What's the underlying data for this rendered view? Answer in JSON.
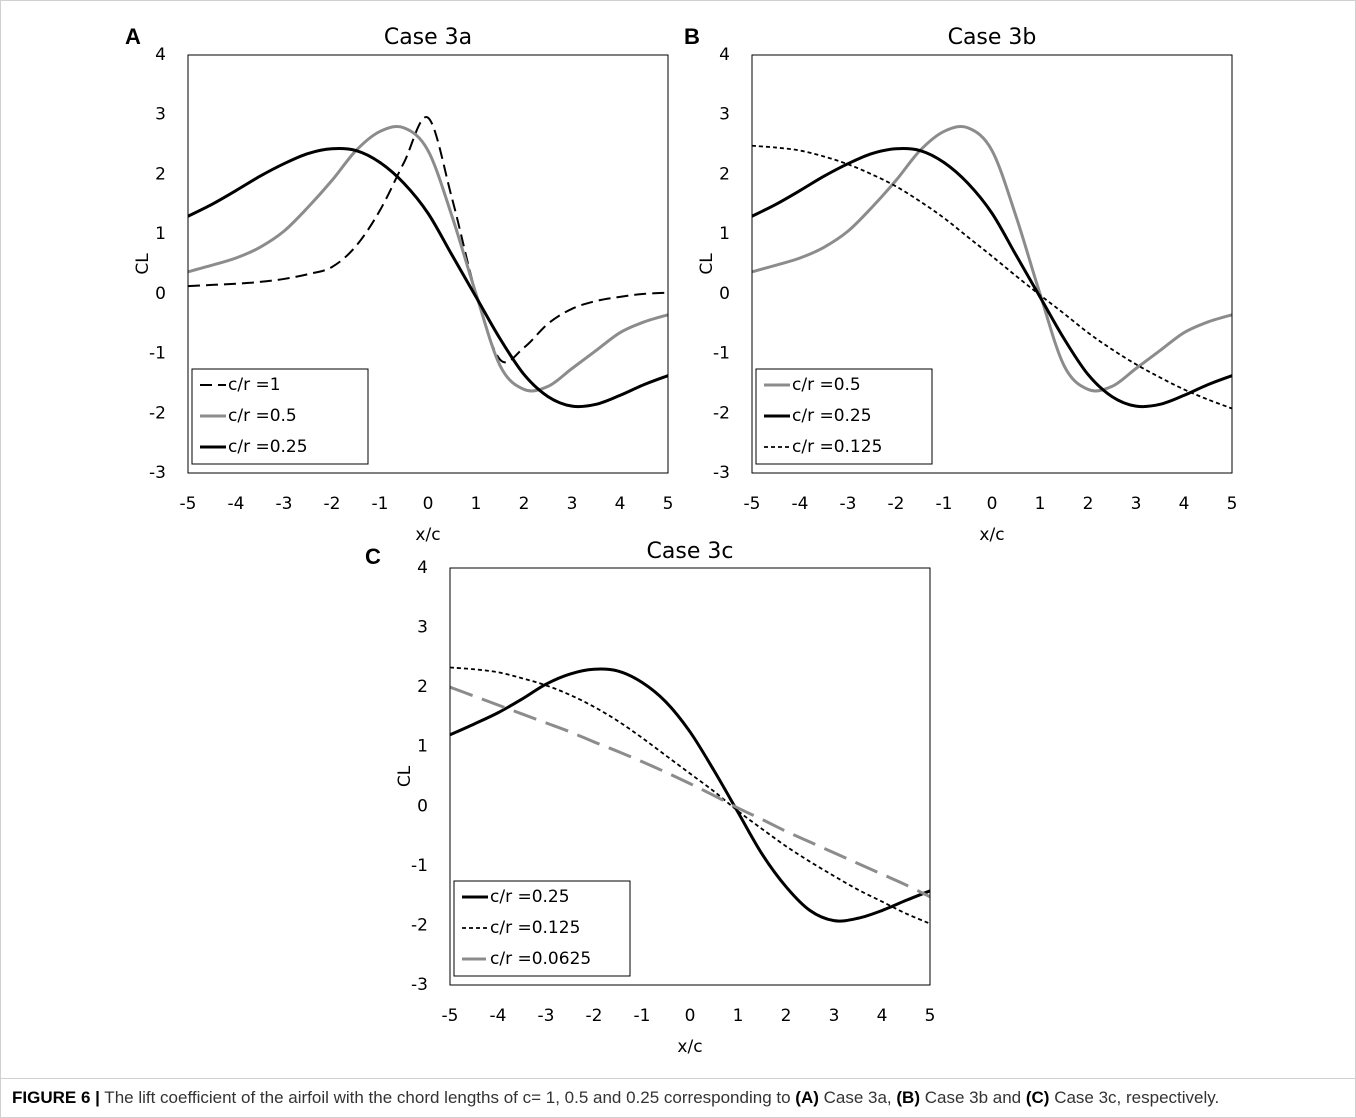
{
  "chart_data": [
    {
      "type": "line",
      "panel": "A",
      "title": "Case 3a",
      "x_label": "x/c",
      "y_label": "CL",
      "xlim": [
        -5,
        5
      ],
      "xticks": [
        -5,
        -4,
        -3,
        -2,
        -1,
        0,
        1,
        2,
        3,
        4,
        5
      ],
      "ylim": [
        -3,
        4
      ],
      "yticks": [
        -3,
        -2,
        -1,
        0,
        1,
        2,
        3,
        4
      ],
      "legend": "lower left",
      "x": [
        -5,
        -4.5,
        -4,
        -3.5,
        -3,
        -2.5,
        -2,
        -1.5,
        -1,
        -0.5,
        0,
        0.5,
        1,
        1.5,
        2,
        2.5,
        3,
        3.5,
        4,
        4.5,
        5
      ],
      "series": [
        {
          "name": "c/r =1",
          "color": "#000000",
          "dash": "dashed",
          "values": [
            0.13,
            0.15,
            0.17,
            0.2,
            0.25,
            0.33,
            0.45,
            0.8,
            1.4,
            2.2,
            2.95,
            1.6,
            0,
            -1.1,
            -0.9,
            -0.5,
            -0.25,
            -0.12,
            -0.05,
            0,
            0.02
          ]
        },
        {
          "name": "c/r =0.5",
          "color": "#8c8c8c",
          "dash": "solid",
          "values": [
            0.37,
            0.48,
            0.6,
            0.78,
            1.05,
            1.45,
            1.9,
            2.4,
            2.72,
            2.78,
            2.4,
            1.3,
            0,
            -1.2,
            -1.6,
            -1.55,
            -1.25,
            -0.95,
            -0.65,
            -0.47,
            -0.35
          ]
        },
        {
          "name": "c/r =0.25",
          "color": "#000000",
          "dash": "solid",
          "values": [
            1.3,
            1.5,
            1.73,
            1.97,
            2.18,
            2.35,
            2.43,
            2.4,
            2.2,
            1.85,
            1.35,
            0.65,
            -0.05,
            -0.75,
            -1.35,
            -1.72,
            -1.88,
            -1.85,
            -1.7,
            -1.52,
            -1.37
          ]
        }
      ]
    },
    {
      "type": "line",
      "panel": "B",
      "title": "Case 3b",
      "x_label": "x/c",
      "y_label": "CL",
      "xlim": [
        -5,
        5
      ],
      "xticks": [
        -5,
        -4,
        -3,
        -2,
        -1,
        0,
        1,
        2,
        3,
        4,
        5
      ],
      "ylim": [
        -3,
        4
      ],
      "yticks": [
        -3,
        -2,
        -1,
        0,
        1,
        2,
        3,
        4
      ],
      "legend": "lower left",
      "x": [
        -5,
        -4.5,
        -4,
        -3.5,
        -3,
        -2.5,
        -2,
        -1.5,
        -1,
        -0.5,
        0,
        0.5,
        1,
        1.5,
        2,
        2.5,
        3,
        3.5,
        4,
        4.5,
        5
      ],
      "series": [
        {
          "name": "c/r =0.5",
          "color": "#8c8c8c",
          "dash": "solid",
          "values": [
            0.37,
            0.48,
            0.6,
            0.78,
            1.05,
            1.45,
            1.9,
            2.4,
            2.72,
            2.78,
            2.4,
            1.3,
            0,
            -1.2,
            -1.6,
            -1.55,
            -1.25,
            -0.95,
            -0.65,
            -0.47,
            -0.35
          ]
        },
        {
          "name": "c/r =0.25",
          "color": "#000000",
          "dash": "solid",
          "values": [
            1.3,
            1.5,
            1.73,
            1.97,
            2.18,
            2.35,
            2.43,
            2.4,
            2.2,
            1.85,
            1.35,
            0.65,
            -0.05,
            -0.75,
            -1.35,
            -1.72,
            -1.88,
            -1.85,
            -1.7,
            -1.52,
            -1.37
          ]
        },
        {
          "name": "c/r =0.125",
          "color": "#000000",
          "dash": "dotted",
          "values": [
            2.48,
            2.45,
            2.4,
            2.3,
            2.17,
            2.0,
            1.8,
            1.55,
            1.27,
            0.95,
            0.63,
            0.3,
            -0.02,
            -0.33,
            -0.65,
            -0.93,
            -1.18,
            -1.4,
            -1.6,
            -1.77,
            -1.92
          ]
        }
      ]
    },
    {
      "type": "line",
      "panel": "C",
      "title": "Case 3c",
      "x_label": "x/c",
      "y_label": "CL",
      "xlim": [
        -5,
        5
      ],
      "xticks": [
        -5,
        -4,
        -3,
        -2,
        -1,
        0,
        1,
        2,
        3,
        4,
        5
      ],
      "ylim": [
        -3,
        4
      ],
      "yticks": [
        -3,
        -2,
        -1,
        0,
        1,
        2,
        3,
        4
      ],
      "legend": "lower left",
      "x": [
        -5,
        -4.5,
        -4,
        -3.5,
        -3,
        -2.5,
        -2,
        -1.5,
        -1,
        -0.5,
        0,
        0.5,
        1,
        1.5,
        2,
        2.5,
        3,
        3.5,
        4,
        4.5,
        5
      ],
      "series": [
        {
          "name": "c/r =0.25",
          "color": "#000000",
          "dash": "solid",
          "values": [
            1.2,
            1.38,
            1.57,
            1.8,
            2.05,
            2.22,
            2.3,
            2.27,
            2.08,
            1.75,
            1.25,
            0.6,
            -0.1,
            -0.8,
            -1.35,
            -1.75,
            -1.92,
            -1.88,
            -1.75,
            -1.58,
            -1.42
          ]
        },
        {
          "name": "c/r =0.125",
          "color": "#000000",
          "dash": "dotted",
          "values": [
            2.33,
            2.3,
            2.25,
            2.15,
            2.03,
            1.87,
            1.67,
            1.43,
            1.15,
            0.85,
            0.55,
            0.25,
            -0.08,
            -0.38,
            -0.67,
            -0.93,
            -1.17,
            -1.4,
            -1.6,
            -1.8,
            -1.97
          ]
        },
        {
          "name": "c/r =0.0625",
          "color": "#8c8c8c",
          "dash": "long-dash",
          "values": [
            2.0,
            1.85,
            1.7,
            1.55,
            1.4,
            1.25,
            1.08,
            0.92,
            0.75,
            0.57,
            0.38,
            0.18,
            -0.03,
            -0.22,
            -0.42,
            -0.6,
            -0.78,
            -0.96,
            -1.14,
            -1.32,
            -1.52
          ]
        }
      ]
    }
  ],
  "caption": [
    {
      "text": "FIGURE 6 |",
      "bold": true
    },
    {
      "text": " The lift coefficient of the airfoil with the chord lengths of c= 1, 0.5 and 0.25 corresponding to ",
      "bold": false
    },
    {
      "text": "(A)",
      "bold": true
    },
    {
      "text": " Case 3a, ",
      "bold": false
    },
    {
      "text": "(B)",
      "bold": true
    },
    {
      "text": " Case 3b and ",
      "bold": false
    },
    {
      "text": "(C)",
      "bold": true
    },
    {
      "text": " Case 3c, respectively.",
      "bold": false
    }
  ]
}
